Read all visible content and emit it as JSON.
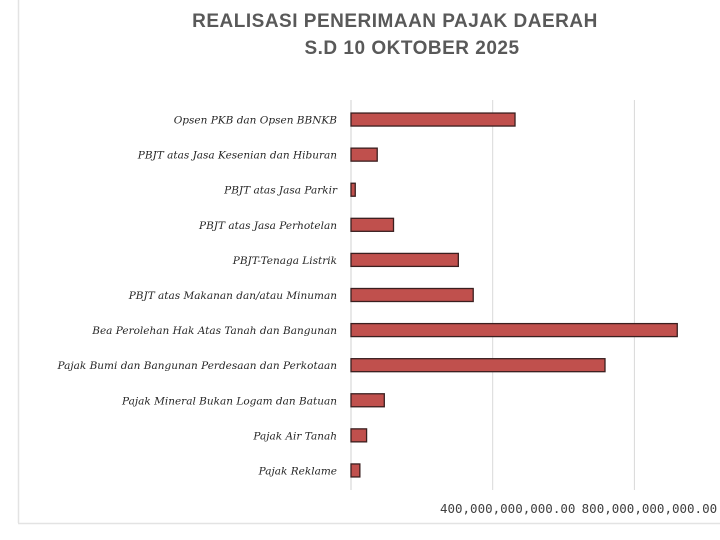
{
  "chart_data": {
    "type": "bar",
    "orientation": "horizontal",
    "title": [
      "REALISASI PENERIMAAN PAJAK DAERAH",
      "S.D 10 OKTOBER 2025"
    ],
    "categories": [
      "Opsen PKB dan Opsen BBNKB",
      "PBJT atas Jasa Kesenian dan Hiburan",
      "PBJT atas Jasa Parkir",
      "PBJT atas Jasa Perhotelan",
      "PBJT-Tenaga Listrik",
      "PBJT atas Makanan dan/atau Minuman",
      "Bea Perolehan Hak Atas Tanah dan Bangunan",
      "Pajak Bumi dan Bangunan Perdesaan dan Perkotaan",
      "Pajak Mineral Bukan Logam dan Batuan",
      "Pajak Air Tanah",
      "Pajak Reklame"
    ],
    "values": [
      463000000000,
      74000000000,
      12000000000,
      120000000000,
      303000000000,
      345000000000,
      921000000000,
      717000000000,
      94000000000,
      44000000000,
      25000000000
    ],
    "xticks": [
      0,
      400000000000,
      800000000000
    ],
    "xtick_labels": [
      "",
      "400,000,000,000.00",
      "800,000,000,000.00"
    ],
    "xlim": [
      0,
      1000000000000
    ],
    "grid": true,
    "xlabel": "",
    "ylabel": "",
    "bar_color": "#C0504D",
    "bar_edge_color": "#3a1f1f"
  }
}
